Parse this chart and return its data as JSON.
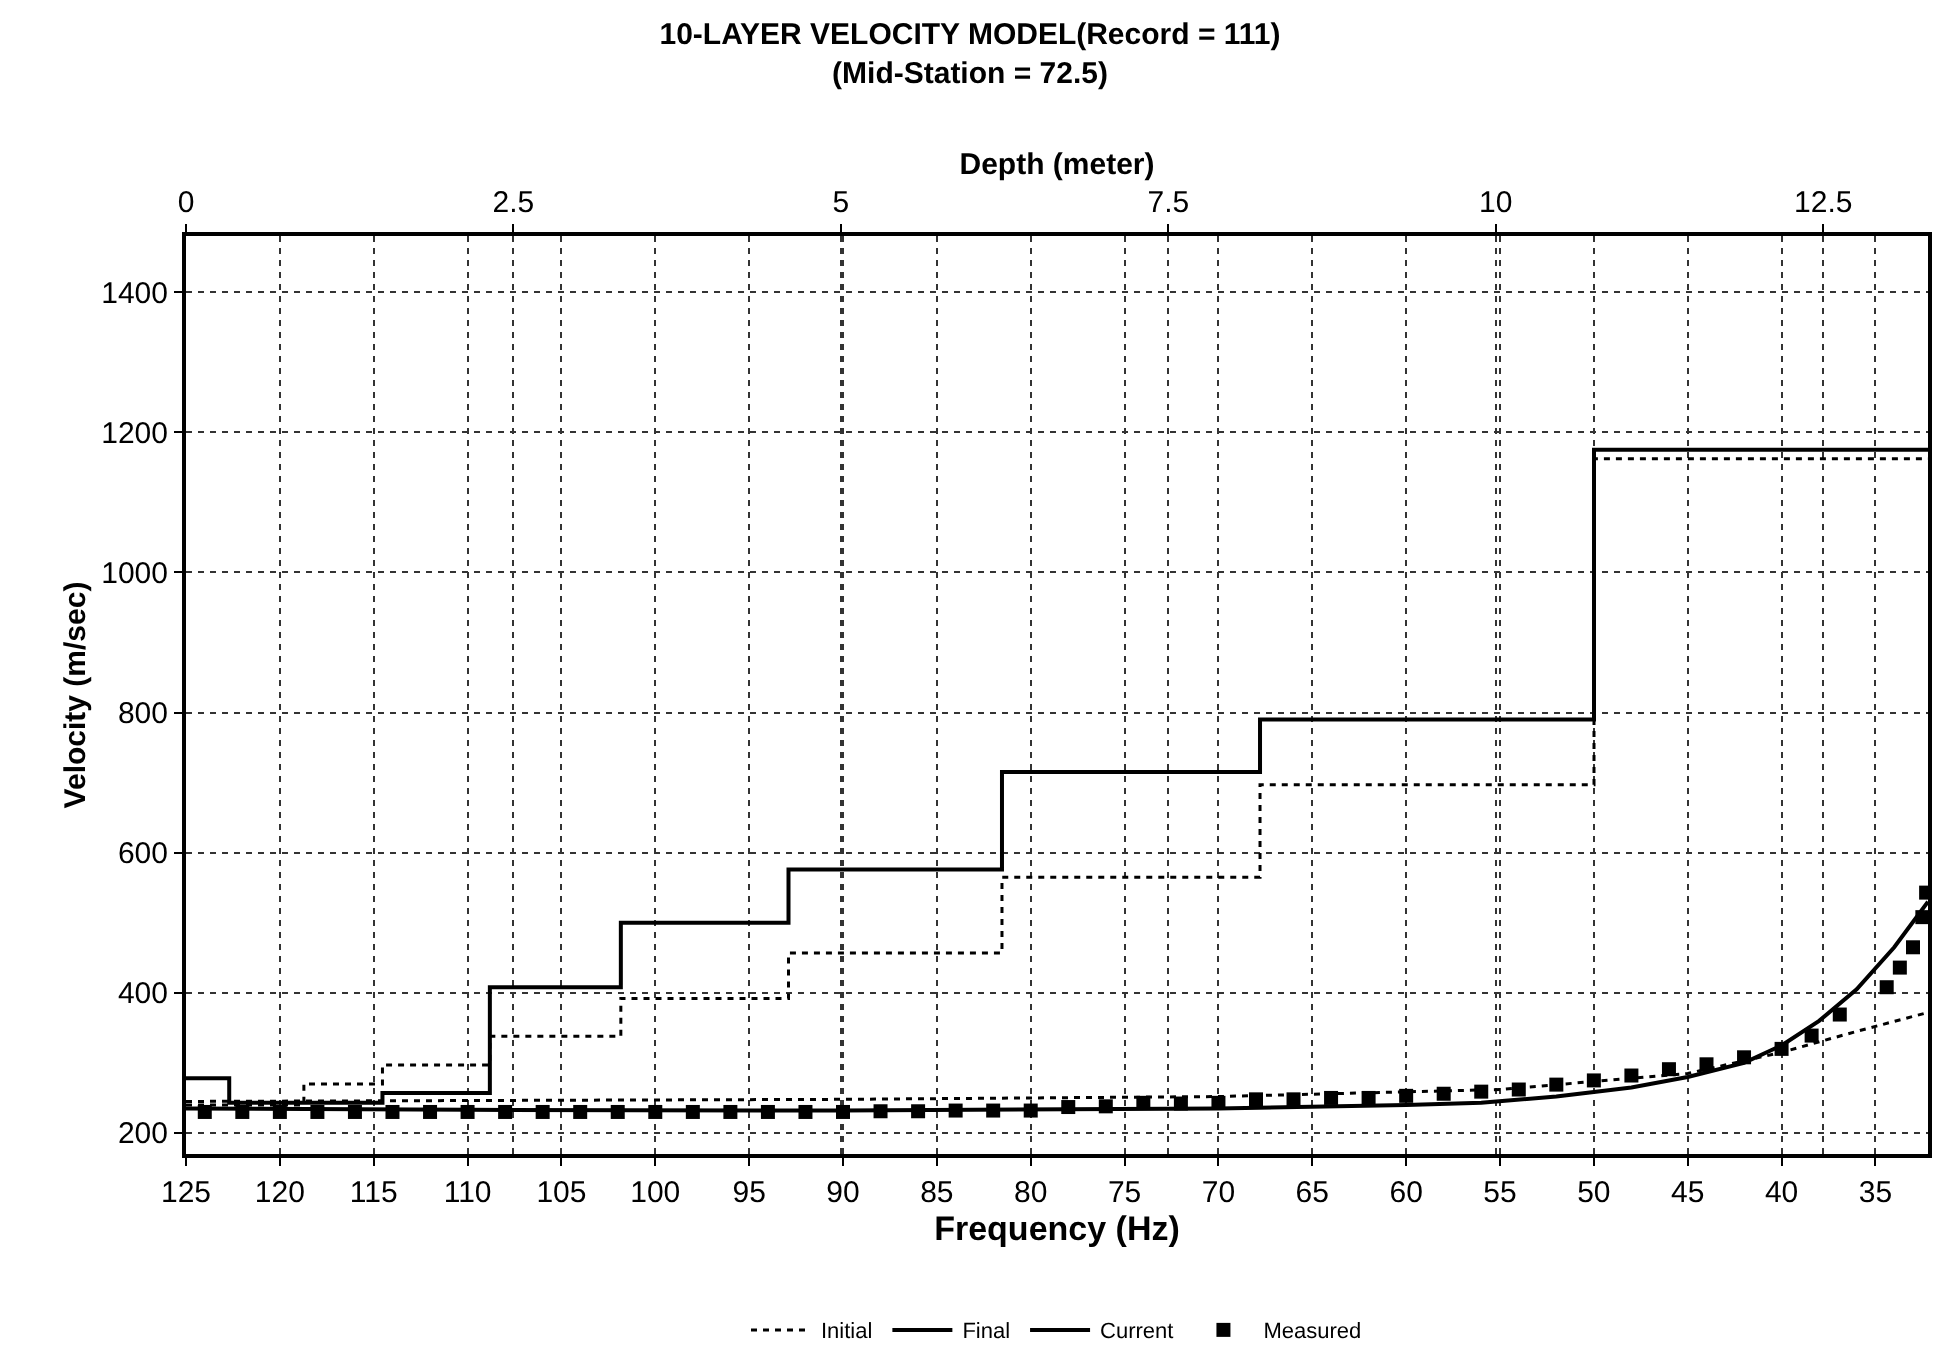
{
  "chart_data": {
    "type": "line",
    "title": "10-LAYER VELOCITY MODEL(Record = 111)",
    "subtitle": "(Mid-Station = 72.5)",
    "xlabel": "Frequency (Hz)",
    "x2label": "Depth (meter)",
    "ylabel": "Velocity (m/sec)",
    "xlim": [
      125,
      32.2
    ],
    "xticks": [
      125,
      120,
      115,
      110,
      105,
      100,
      95,
      90,
      85,
      80,
      75,
      70,
      65,
      60,
      55,
      50,
      45,
      40,
      35
    ],
    "x2lim": [
      0,
      13.3
    ],
    "x2ticks": [
      0,
      2.5,
      5,
      7.5,
      10,
      12.5
    ],
    "ylim": [
      170,
      1480
    ],
    "yticks": [
      200,
      400,
      600,
      800,
      1000,
      1200,
      1400
    ],
    "grid": true,
    "legend": "bottom",
    "series": [
      {
        "name": "Initial",
        "type": "step",
        "axis": "x2",
        "color": "#000000",
        "line_style": "dotted",
        "marker": "none",
        "x": [
          0,
          0.9,
          1.5,
          2.32,
          3.32,
          4.6,
          6.23,
          8.2,
          10.75,
          13.3
        ],
        "values": [
          240,
          270,
          297,
          338,
          392,
          457,
          565,
          697,
          1162,
          1162
        ]
      },
      {
        "name": "Final",
        "type": "step",
        "axis": "x2",
        "color": "#000000",
        "line_style": "solid",
        "marker": "none",
        "x": [
          0,
          0.33,
          1.5,
          2.32,
          3.32,
          4.6,
          6.23,
          8.2,
          10.75,
          13.3
        ],
        "values": [
          278,
          243,
          257,
          408,
          500,
          576,
          715,
          790,
          1175,
          1175
        ]
      },
      {
        "name": "Current",
        "color": "#000000",
        "line_style": "solid",
        "marker": "none",
        "x": [
          125,
          110,
          90,
          70,
          60,
          56,
          52,
          48,
          45,
          42,
          40,
          38,
          36,
          34,
          32.2
        ],
        "values": [
          235,
          233,
          232,
          235,
          240,
          243,
          252,
          265,
          280,
          300,
          325,
          360,
          405,
          465,
          530
        ]
      },
      {
        "color": "#000000",
        "line_style": "dotted",
        "marker": "none",
        "x": [
          125,
          90,
          70,
          55,
          45,
          40,
          36,
          32.2
        ],
        "values": [
          245,
          248,
          252,
          262,
          285,
          315,
          345,
          372
        ]
      },
      {
        "name": "Measured",
        "type": "scatter",
        "color": "#000000",
        "marker": "square",
        "x": [
          124,
          122,
          120,
          118,
          116,
          114,
          112,
          110,
          108,
          106,
          104,
          102,
          100,
          98,
          96,
          94,
          92,
          90,
          88,
          86,
          84,
          82,
          80,
          78,
          76,
          74,
          72,
          70,
          68,
          66,
          64,
          62,
          60,
          58,
          56,
          54,
          52,
          50,
          48,
          46,
          44,
          42,
          40,
          38.4,
          36.9,
          34.4,
          33.7,
          33.0,
          32.5,
          32.3
        ],
        "values": [
          230,
          230,
          230,
          230,
          230,
          230,
          230,
          230,
          230,
          230,
          230,
          230,
          230,
          230,
          230,
          230,
          230,
          230,
          231,
          231,
          232,
          232,
          232,
          237,
          238,
          243,
          242,
          243,
          248,
          248,
          250,
          250,
          253,
          256,
          259,
          262,
          269,
          275,
          282,
          291,
          298,
          308,
          320,
          339,
          369,
          408,
          436,
          465,
          508,
          543
        ]
      }
    ]
  }
}
